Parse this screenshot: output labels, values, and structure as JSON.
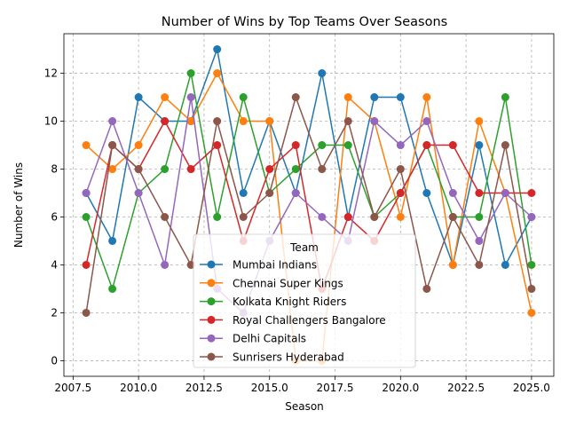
{
  "chart_data": {
    "type": "line",
    "title": "Number of Wins by Top Teams Over Seasons",
    "xlabel": "Season",
    "ylabel": "Number of Wins",
    "xlim": [
      2007.15,
      2025.85
    ],
    "ylim": [
      -0.65,
      13.65
    ],
    "xticks": [
      2007.5,
      2010.0,
      2012.5,
      2015.0,
      2017.5,
      2020.0,
      2022.5,
      2025.0
    ],
    "xtick_labels": [
      "2007.5",
      "2010.0",
      "2012.5",
      "2015.0",
      "2017.5",
      "2020.0",
      "2022.5",
      "2025.0"
    ],
    "yticks": [
      0,
      2,
      4,
      6,
      8,
      10,
      12
    ],
    "ytick_labels": [
      "0",
      "2",
      "4",
      "6",
      "8",
      "10",
      "12"
    ],
    "grid": true,
    "legend": {
      "title": "Team",
      "placement": "lower-center"
    },
    "x": [
      2008,
      2009,
      2010,
      2011,
      2012,
      2013,
      2014,
      2015,
      2016,
      2017,
      2018,
      2019,
      2020,
      2021,
      2022,
      2023,
      2024,
      2025
    ],
    "series": [
      {
        "name": "Mumbai Indians",
        "color": "#1f77b4",
        "values": [
          7,
          5,
          11,
          10,
          10,
          13,
          7,
          10,
          7,
          12,
          6,
          11,
          11,
          7,
          4,
          9,
          4,
          6
        ]
      },
      {
        "name": "Chennai Super Kings",
        "color": "#ff7f0e",
        "values": [
          9,
          8,
          9,
          11,
          10,
          12,
          10,
          10,
          0,
          0,
          11,
          10,
          6,
          11,
          4,
          10,
          7,
          2
        ]
      },
      {
        "name": "Kolkata Knight Riders",
        "color": "#2ca02c",
        "values": [
          6,
          3,
          7,
          8,
          12,
          6,
          11,
          7,
          8,
          9,
          9,
          6,
          7,
          9,
          6,
          6,
          11,
          4
        ]
      },
      {
        "name": "Royal Challengers Bangalore",
        "color": "#d62728",
        "values": [
          4,
          9,
          8,
          10,
          8,
          9,
          5,
          8,
          9,
          3,
          6,
          5,
          7,
          9,
          9,
          7,
          7,
          7
        ]
      },
      {
        "name": "Delhi Capitals",
        "color": "#9467bd",
        "values": [
          7,
          10,
          7,
          4,
          11,
          3,
          2,
          5,
          7,
          6,
          5,
          10,
          9,
          10,
          7,
          5,
          7,
          6
        ]
      },
      {
        "name": "Sunrisers Hyderabad",
        "color": "#8c564b",
        "values": [
          2,
          9,
          8,
          6,
          4,
          10,
          6,
          7,
          11,
          8,
          10,
          6,
          8,
          3,
          6,
          4,
          9,
          3
        ]
      }
    ]
  }
}
